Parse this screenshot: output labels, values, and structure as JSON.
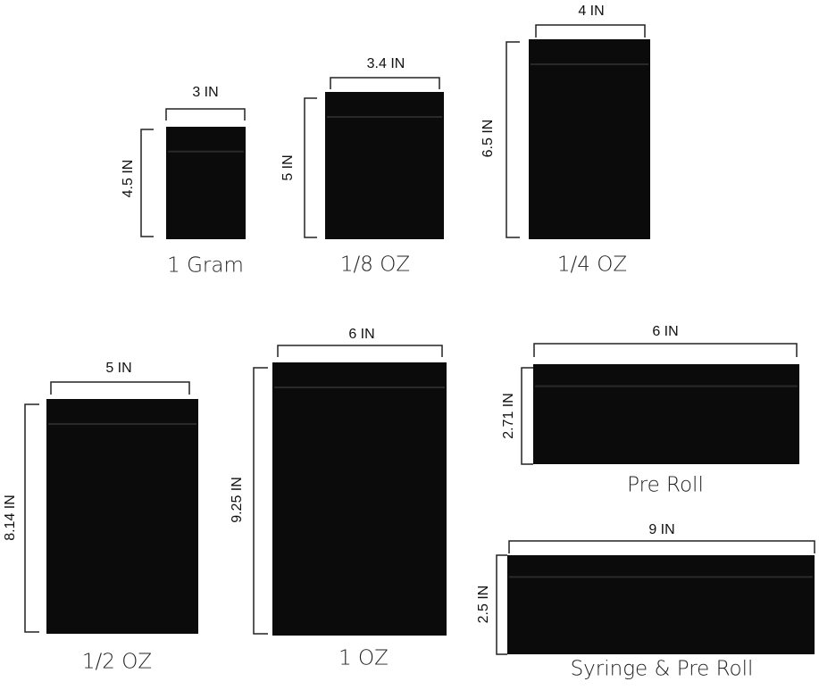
{
  "items": [
    {
      "name": "1 Gram",
      "width": "3 IN",
      "height": "4.5 IN"
    },
    {
      "name": "1/8 OZ",
      "width": "3.4 IN",
      "height": "5 IN"
    },
    {
      "name": "1/4 OZ",
      "width": "4 IN",
      "height": "6.5 IN"
    },
    {
      "name": "1/2 OZ",
      "width": "5 IN",
      "height": "8.14 IN"
    },
    {
      "name": "1 OZ",
      "width": "6 IN",
      "height": "9.25 IN"
    },
    {
      "name": "Pre Roll",
      "width": "6 IN",
      "height": "2.71 IN"
    },
    {
      "name": "Syringe & Pre Roll",
      "width": "9 IN",
      "height": "2.5 IN"
    }
  ]
}
